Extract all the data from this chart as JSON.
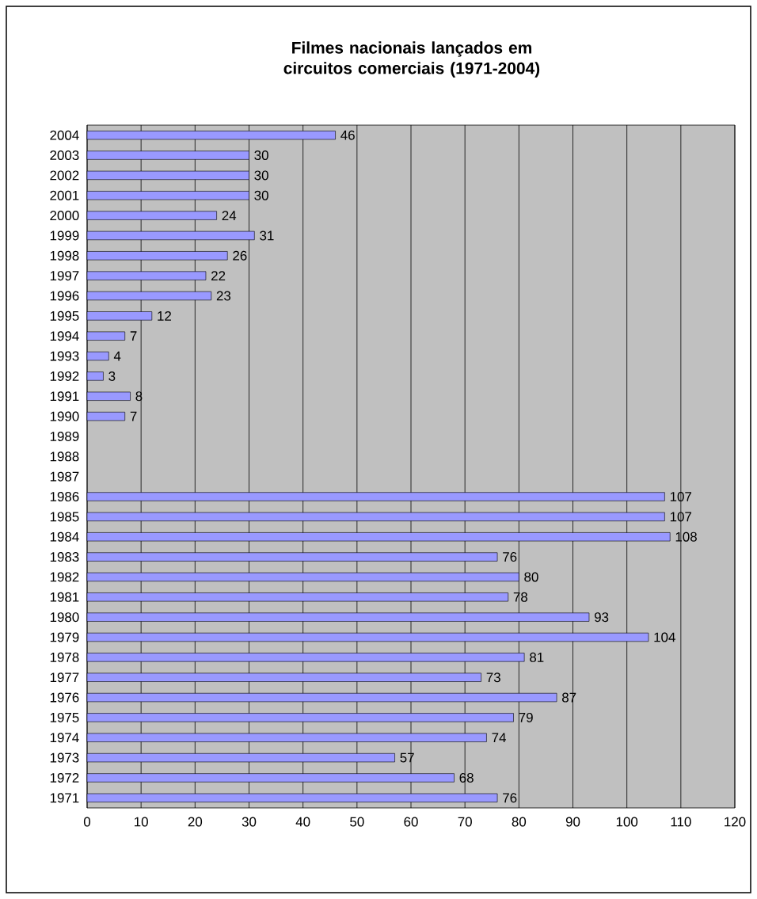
{
  "chart_data": {
    "type": "bar",
    "orientation": "horizontal",
    "title": "Filmes nacionais lançados em circuitos comerciais (1971-2004)",
    "categories": [
      "2004",
      "2003",
      "2002",
      "2001",
      "2000",
      "1999",
      "1998",
      "1997",
      "1996",
      "1995",
      "1994",
      "1993",
      "1992",
      "1991",
      "1990",
      "1989",
      "1988",
      "1987",
      "1986",
      "1985",
      "1984",
      "1983",
      "1982",
      "1981",
      "1980",
      "1979",
      "1978",
      "1977",
      "1976",
      "1975",
      "1974",
      "1973",
      "1972",
      "1971"
    ],
    "values": [
      46,
      30,
      30,
      30,
      24,
      31,
      26,
      22,
      23,
      12,
      7,
      4,
      3,
      8,
      7,
      null,
      null,
      null,
      107,
      107,
      108,
      76,
      80,
      78,
      93,
      104,
      81,
      73,
      87,
      79,
      74,
      57,
      68,
      76
    ],
    "color": "#9999ff",
    "xlim": [
      0,
      120
    ],
    "xticks": [
      0,
      10,
      20,
      30,
      40,
      50,
      60,
      70,
      80,
      90,
      100,
      110,
      120
    ],
    "grid": "x",
    "data_labels": true
  }
}
